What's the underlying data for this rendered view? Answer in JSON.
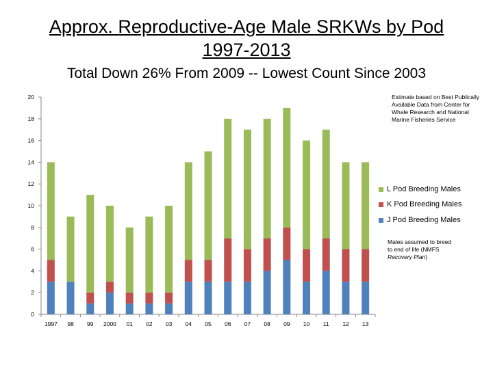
{
  "slide": {
    "title_line1": "Approx. Reproductive-Age Male SRKWs by Pod",
    "title_line2": "1997-2013",
    "subtitle": "Total Down 26% From 2009 -- Lowest Count Since 2003"
  },
  "notes": {
    "source": "Estimate based on Best Publically Available Data from Center for Whale Research and National Marine Fisheries Service",
    "assumption_prefix": "Males assumed to breed to end of life (NMFS ",
    "assumption_italic": "Recovery Plan",
    "assumption_suffix": ")"
  },
  "colors": {
    "j_pod": "#4F81BD",
    "k_pod": "#C0504D",
    "l_pod": "#9BBB59",
    "axis": "#868686"
  },
  "chart_data": {
    "type": "bar",
    "stacked": true,
    "categories": [
      "1997",
      "98",
      "99",
      "2000",
      "01",
      "02",
      "03",
      "04",
      "05",
      "06",
      "07",
      "08",
      "09",
      "10",
      "11",
      "12",
      "13"
    ],
    "series": [
      {
        "name": "J Pod Breeding Males",
        "values": [
          3,
          3,
          1,
          2,
          1,
          1,
          1,
          3,
          3,
          3,
          3,
          4,
          5,
          3,
          4,
          3,
          3
        ]
      },
      {
        "name": "K Pod Breeding Males",
        "values": [
          2,
          0,
          1,
          1,
          1,
          1,
          1,
          2,
          2,
          4,
          3,
          3,
          3,
          3,
          3,
          3,
          3
        ]
      },
      {
        "name": "L Pod Breeding Males",
        "values": [
          9,
          6,
          9,
          7,
          6,
          7,
          8,
          9,
          10,
          11,
          11,
          11,
          11,
          10,
          10,
          8,
          8
        ]
      }
    ],
    "yticks": [
      "0",
      "2",
      "4",
      "6",
      "8",
      "10",
      "12",
      "14",
      "16",
      "18",
      "20"
    ],
    "ylim": [
      0,
      20
    ],
    "grid": false,
    "legend_position": "right",
    "legend_order": [
      "L Pod Breeding Males",
      "K Pod Breeding Males",
      "J Pod Breeding Males"
    ]
  }
}
